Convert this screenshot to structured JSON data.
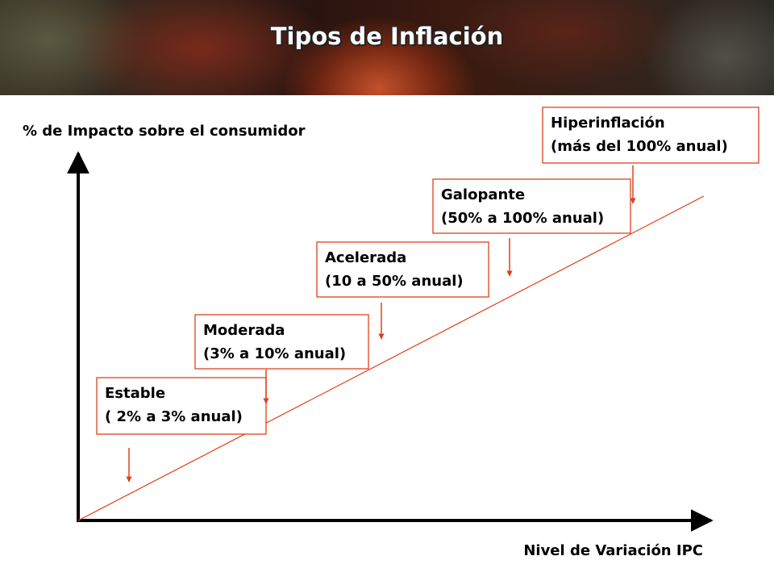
{
  "header": {
    "title": "Tipos de Inflación"
  },
  "axes": {
    "y_label": "% de Impacto sobre el consumidor",
    "x_label": "Nivel de Variación IPC"
  },
  "boxes": [
    {
      "name": "Estable",
      "range": "( 2% a 3% anual)"
    },
    {
      "name": "Moderada",
      "range": "(3% a 10% anual)"
    },
    {
      "name": "Acelerada",
      "range": "(10 a 50% anual)"
    },
    {
      "name": "Galopante",
      "range": "(50% a 100% anual)"
    },
    {
      "name": "Hiperinflación",
      "range": "(más del 100% anual)"
    }
  ]
}
